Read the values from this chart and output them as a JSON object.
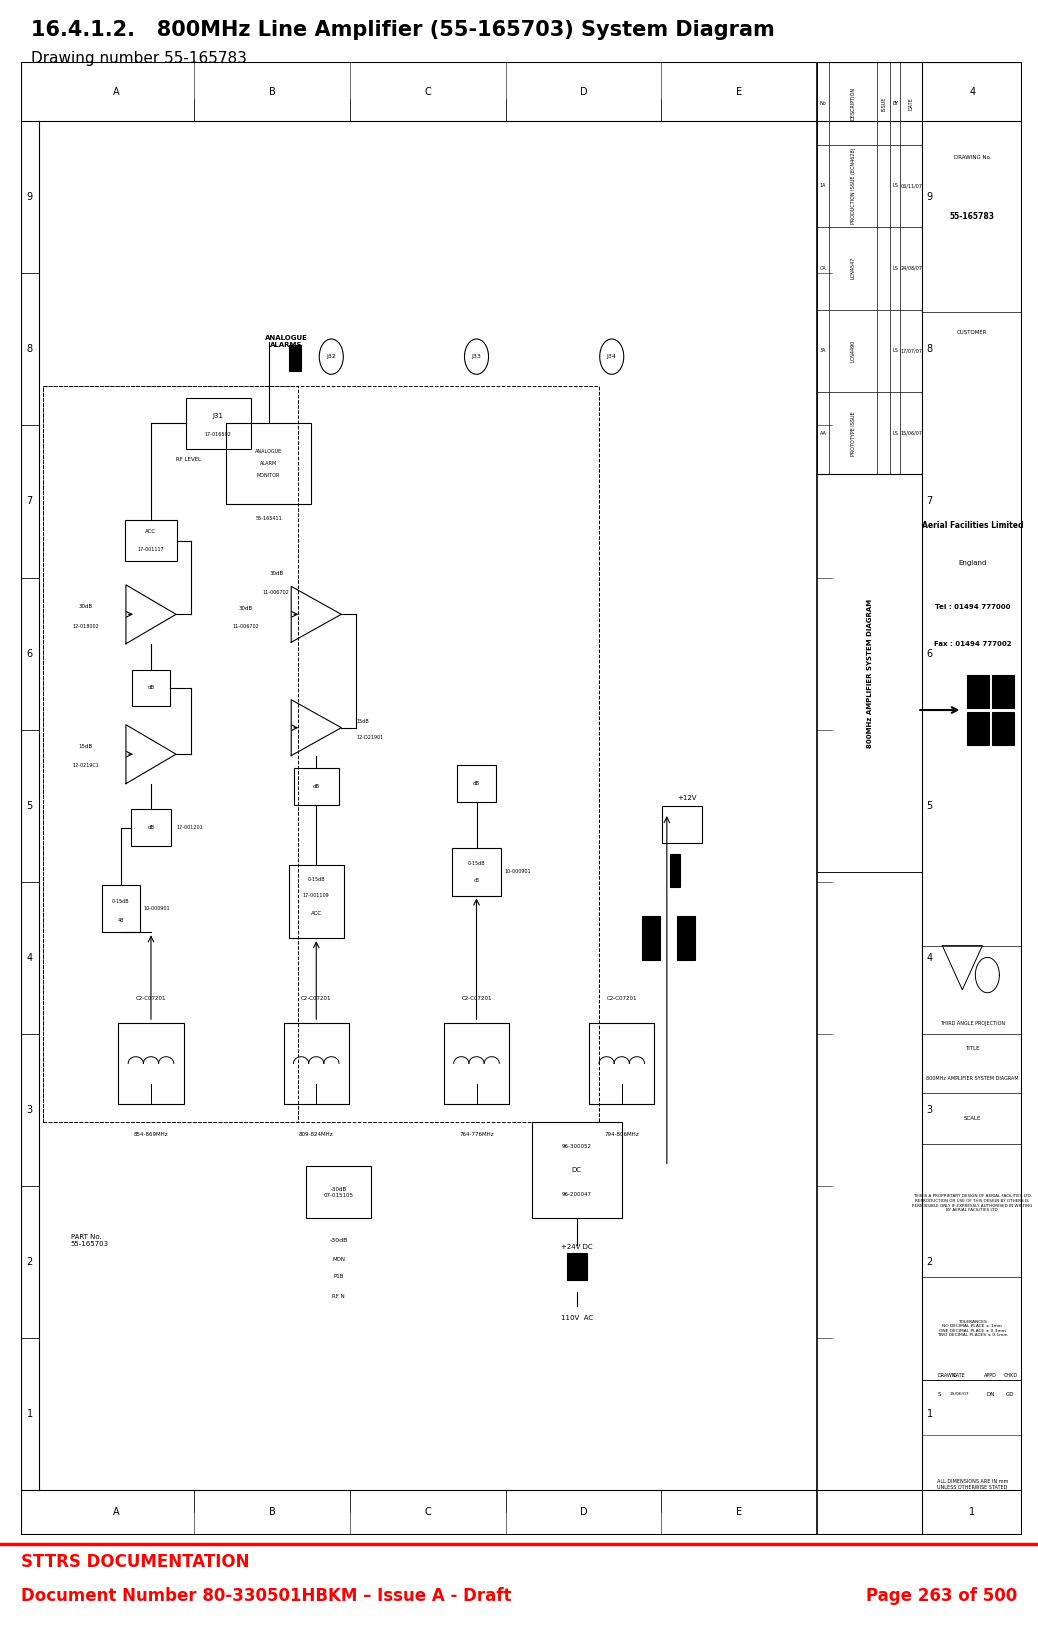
{
  "title_bold": "16.4.1.2.   800MHz Line Amplifier (55-165703) System Diagram",
  "subtitle": "Drawing number 55-165783",
  "footer_left_line1": "STTRS DOCUMENTATION",
  "footer_left_line2": "Document Number 80-330501HBKM – Issue A - Draft",
  "footer_right": "Page 263 of 500",
  "footer_red": "#ff0000",
  "bg_color": "#ffffff",
  "drawing_bg": "#ffffff",
  "title_fontsize": 15,
  "subtitle_fontsize": 11,
  "footer_fontsize": 12,
  "col_labels": [
    "A",
    "B",
    "C",
    "D",
    "E"
  ],
  "row_labels": [
    "9",
    "8",
    "7",
    "6",
    "5",
    "4",
    "3",
    "2",
    "1"
  ],
  "company_name": "Aerial Facilities Limited",
  "company_loc": "England",
  "company_tel": "Tel : 01494 777000",
  "company_fax": "Fax : 01494 777002",
  "drawing_title": "800MHz AMPLIFIER SYSTEM DIAGRAM",
  "drawing_no": "55-165783",
  "part_no": "PART No.\n55-165703"
}
